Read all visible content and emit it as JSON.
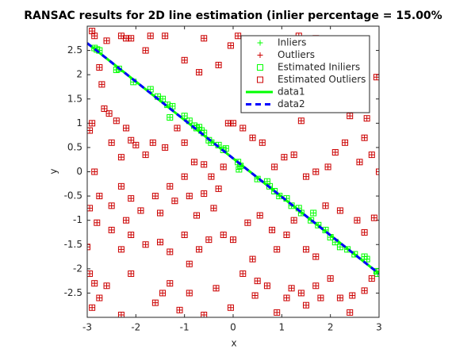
{
  "chart_data": {
    "type": "scatter",
    "title": "RANSAC results for 2D line estimation (inlier percentage = 15.00%",
    "xlabel": "x",
    "ylabel": "y",
    "xlim": [
      -3,
      3
    ],
    "ylim": [
      -3,
      3
    ],
    "xticks": [
      -3,
      -2,
      -1,
      0,
      1,
      2,
      3
    ],
    "yticks": [
      -2.5,
      -2,
      -1.5,
      -1,
      -0.5,
      0,
      0.5,
      1,
      1.5,
      2,
      2.5
    ],
    "grid": false,
    "legend": "upper right",
    "series": [
      {
        "name": "Inliers",
        "color": "#00ff00",
        "marker": "plus",
        "x": [
          -2.85,
          -2.8,
          -2.75,
          -2.4,
          -2.35,
          -2.05,
          -1.7,
          -1.55,
          -1.45,
          -1.35,
          -1.3,
          -1.25,
          -1.0,
          -0.9,
          -0.8,
          -0.75,
          -0.7,
          -0.65,
          -0.6,
          -0.5,
          -0.45,
          -0.3,
          -0.2,
          -0.15,
          0.1,
          0.12,
          0.15,
          0.5,
          0.7,
          0.75,
          0.85,
          0.95,
          1.1,
          1.2,
          1.35,
          1.4,
          1.6,
          1.65,
          1.75,
          1.9,
          2.0,
          2.1,
          2.2,
          2.35,
          2.5,
          2.7,
          2.75,
          2.95,
          2.97
        ],
        "y": [
          2.55,
          2.52,
          2.5,
          2.1,
          2.12,
          1.85,
          1.7,
          1.55,
          1.5,
          1.38,
          1.12,
          1.35,
          1.15,
          1.05,
          0.95,
          0.9,
          0.92,
          0.85,
          0.8,
          0.65,
          0.6,
          0.55,
          0.45,
          0.48,
          0.2,
          0.05,
          0.12,
          -0.15,
          -0.2,
          -0.3,
          -0.4,
          -0.5,
          -0.55,
          -0.7,
          -0.75,
          -0.85,
          -1.0,
          -0.85,
          -1.1,
          -1.2,
          -1.35,
          -1.45,
          -1.55,
          -1.6,
          -1.7,
          -1.75,
          -1.8,
          -2.05,
          -2.1
        ]
      },
      {
        "name": "Outliers",
        "color": "#cc0000",
        "marker": "plus",
        "x": [
          -2.9,
          -2.85,
          -2.6,
          -2.3,
          -2.2,
          -2.1,
          -1.8,
          -1.7,
          -1.4,
          -1.0,
          -0.7,
          -0.6,
          -0.3,
          -0.05,
          0.1,
          0.35,
          0.5,
          0.3,
          0.5,
          0.6,
          0.9,
          1.2,
          1.05,
          0.95,
          1.65,
          1.75,
          1.4,
          1.85,
          2.4,
          2.75,
          1.35,
          -2.75,
          -2.7,
          -2.65,
          -2.55,
          -2.4,
          -2.9,
          -2.95,
          -2.5,
          -2.2,
          -2.1,
          -2.0,
          -1.8,
          -1.65,
          -1.4,
          -1.15,
          -1.0,
          -0.8,
          -0.6,
          -0.45,
          -0.3,
          -0.2,
          -2.3,
          -2.85,
          -2.75,
          -2.5,
          -2.3,
          -2.1,
          -1.9,
          -2.2,
          -1.6,
          -1.5,
          -1.3,
          -1.2,
          -1.0,
          -0.9,
          -0.75,
          -0.6,
          -0.4,
          -2.95,
          -2.8,
          -2.5,
          -2.3,
          -2.1,
          -1.8,
          -1.5,
          -1.3,
          -1.0,
          -0.9,
          -0.7,
          -0.5,
          -0.2,
          -3.0,
          -2.95,
          -2.85,
          -2.75,
          -2.9,
          -2.6,
          -2.3,
          -2.1,
          -1.6,
          -1.45,
          -1.3,
          -1.1,
          -0.9,
          -0.6,
          -0.35,
          -0.05,
          0.2,
          0.4,
          0.5,
          0.45,
          0.7,
          0.9,
          1.1,
          1.2,
          1.4,
          1.5,
          1.7,
          1.8,
          2.0,
          2.2,
          2.45,
          2.7,
          2.85,
          2.4,
          0.0,
          0.3,
          0.55,
          0.8,
          0.9,
          1.1,
          1.25,
          1.5,
          1.7,
          1.9,
          2.2,
          2.55,
          2.7,
          2.9,
          3.0,
          2.85,
          2.6,
          2.3,
          2.1,
          1.95,
          1.7,
          1.5,
          1.25,
          1.05,
          0.85,
          0.6,
          0.4,
          0.2,
          0.0,
          -0.1,
          2.7,
          2.45,
          2.95,
          2.25,
          2.6,
          1.7
        ],
        "y": [
          2.9,
          2.8,
          2.7,
          2.8,
          2.75,
          2.75,
          2.5,
          2.8,
          2.8,
          2.3,
          2.05,
          2.75,
          2.2,
          2.6,
          2.8,
          2.5,
          2.65,
          2.2,
          1.8,
          1.5,
          1.75,
          1.75,
          2.3,
          2.6,
          2.1,
          1.5,
          1.05,
          1.3,
          1.15,
          1.1,
          2.8,
          2.15,
          1.8,
          1.3,
          1.2,
          1.05,
          1.0,
          0.85,
          0.6,
          0.9,
          0.65,
          0.55,
          0.35,
          0.6,
          0.5,
          0.9,
          0.6,
          0.2,
          0.15,
          -0.1,
          -0.35,
          0.1,
          0.3,
          0.0,
          -0.5,
          -0.7,
          -0.3,
          -0.55,
          -0.8,
          -1.0,
          -0.5,
          -0.85,
          -0.3,
          -0.6,
          -0.1,
          -0.5,
          -0.9,
          -0.45,
          -0.75,
          -0.75,
          -1.05,
          -1.2,
          -1.6,
          -1.3,
          -1.5,
          -1.45,
          -1.65,
          -1.3,
          -1.9,
          -1.6,
          -1.4,
          -1.3,
          -1.55,
          -2.1,
          -2.3,
          -2.6,
          -2.8,
          -2.35,
          -2.95,
          -2.1,
          -2.7,
          -2.5,
          -2.3,
          -2.85,
          -2.5,
          -2.95,
          -2.4,
          -2.8,
          -2.1,
          -1.8,
          -2.25,
          -2.55,
          -2.35,
          -2.9,
          -2.6,
          -2.4,
          -2.5,
          -2.75,
          -2.35,
          -2.6,
          -2.2,
          -2.6,
          -2.55,
          -2.45,
          -2.2,
          -2.9,
          -1.4,
          -1.05,
          -0.9,
          -1.2,
          -1.6,
          -1.3,
          -1.0,
          -1.6,
          -1.75,
          -0.7,
          -0.8,
          -1.0,
          -1.25,
          -0.95,
          0.0,
          0.35,
          0.2,
          0.6,
          0.4,
          0.1,
          0.0,
          -0.1,
          0.35,
          0.3,
          0.1,
          0.6,
          0.7,
          0.9,
          1.0,
          1.0,
          0.7,
          1.65,
          1.95,
          2.6,
          2.2,
          2.75
        ]
      },
      {
        "name": "Estimated Iniliers",
        "color": "#00ff00",
        "marker": "square",
        "x": [
          -2.85,
          -2.8,
          -2.75,
          -2.4,
          -2.35,
          -2.05,
          -1.7,
          -1.55,
          -1.45,
          -1.35,
          -1.3,
          -1.25,
          -1.0,
          -0.9,
          -0.8,
          -0.75,
          -0.7,
          -0.65,
          -0.6,
          -0.5,
          -0.45,
          -0.3,
          -0.2,
          -0.15,
          0.1,
          0.12,
          0.15,
          0.5,
          0.7,
          0.75,
          0.85,
          0.95,
          1.1,
          1.2,
          1.35,
          1.4,
          1.6,
          1.65,
          1.75,
          1.9,
          2.0,
          2.1,
          2.2,
          2.35,
          2.5,
          2.7,
          2.75,
          2.95,
          2.97
        ],
        "y": [
          2.55,
          2.52,
          2.5,
          2.1,
          2.12,
          1.85,
          1.7,
          1.55,
          1.5,
          1.38,
          1.12,
          1.35,
          1.15,
          1.05,
          0.95,
          0.9,
          0.92,
          0.85,
          0.8,
          0.65,
          0.6,
          0.55,
          0.45,
          0.48,
          0.2,
          0.05,
          0.12,
          -0.15,
          -0.2,
          -0.3,
          -0.4,
          -0.5,
          -0.55,
          -0.7,
          -0.75,
          -0.85,
          -1.0,
          -0.85,
          -1.1,
          -1.2,
          -1.35,
          -1.45,
          -1.55,
          -1.6,
          -1.7,
          -1.75,
          -1.8,
          -2.05,
          -2.1
        ]
      },
      {
        "name": "Estimated Outliers",
        "color": "#cc0000",
        "marker": "square",
        "x": [
          -2.9,
          -2.85,
          -2.6,
          -2.3,
          -2.2,
          -2.1,
          -1.8,
          -1.7,
          -1.4,
          -1.0,
          -0.7,
          -0.6,
          -0.3,
          -0.05,
          0.1,
          0.35,
          0.5,
          0.3,
          0.5,
          0.6,
          0.9,
          1.2,
          1.05,
          0.95,
          1.65,
          1.75,
          1.4,
          1.85,
          2.4,
          2.75,
          1.35,
          -2.75,
          -2.7,
          -2.65,
          -2.55,
          -2.4,
          -2.9,
          -2.95,
          -2.5,
          -2.2,
          -2.1,
          -2.0,
          -1.8,
          -1.65,
          -1.4,
          -1.15,
          -1.0,
          -0.8,
          -0.6,
          -0.45,
          -0.3,
          -0.2,
          -2.3,
          -2.85,
          -2.75,
          -2.5,
          -2.3,
          -2.1,
          -1.9,
          -2.2,
          -1.6,
          -1.5,
          -1.3,
          -1.2,
          -1.0,
          -0.9,
          -0.75,
          -0.6,
          -0.4,
          -2.95,
          -2.8,
          -2.5,
          -2.3,
          -2.1,
          -1.8,
          -1.5,
          -1.3,
          -1.0,
          -0.9,
          -0.7,
          -0.5,
          -0.2,
          -3.0,
          -2.95,
          -2.85,
          -2.75,
          -2.9,
          -2.6,
          -2.3,
          -2.1,
          -1.6,
          -1.45,
          -1.3,
          -1.1,
          -0.9,
          -0.6,
          -0.35,
          -0.05,
          0.2,
          0.4,
          0.5,
          0.45,
          0.7,
          0.9,
          1.1,
          1.2,
          1.4,
          1.5,
          1.7,
          1.8,
          2.0,
          2.2,
          2.45,
          2.7,
          2.85,
          2.4,
          0.0,
          0.3,
          0.55,
          0.8,
          0.9,
          1.1,
          1.25,
          1.5,
          1.7,
          1.9,
          2.2,
          2.55,
          2.7,
          2.9,
          3.0,
          2.85,
          2.6,
          2.3,
          2.1,
          1.95,
          1.7,
          1.5,
          1.25,
          1.05,
          0.85,
          0.6,
          0.4,
          0.2,
          0.0,
          -0.1,
          2.7,
          2.45,
          2.95,
          2.25,
          2.6,
          1.7
        ],
        "y": [
          2.9,
          2.8,
          2.7,
          2.8,
          2.75,
          2.75,
          2.5,
          2.8,
          2.8,
          2.3,
          2.05,
          2.75,
          2.2,
          2.6,
          2.8,
          2.5,
          2.65,
          2.2,
          1.8,
          1.5,
          1.75,
          1.75,
          2.3,
          2.6,
          2.1,
          1.5,
          1.05,
          1.3,
          1.15,
          1.1,
          2.8,
          2.15,
          1.8,
          1.3,
          1.2,
          1.05,
          1.0,
          0.85,
          0.6,
          0.9,
          0.65,
          0.55,
          0.35,
          0.6,
          0.5,
          0.9,
          0.6,
          0.2,
          0.15,
          -0.1,
          -0.35,
          0.1,
          0.3,
          0.0,
          -0.5,
          -0.7,
          -0.3,
          -0.55,
          -0.8,
          -1.0,
          -0.5,
          -0.85,
          -0.3,
          -0.6,
          -0.1,
          -0.5,
          -0.9,
          -0.45,
          -0.75,
          -0.75,
          -1.05,
          -1.2,
          -1.6,
          -1.3,
          -1.5,
          -1.45,
          -1.65,
          -1.3,
          -1.9,
          -1.6,
          -1.4,
          -1.3,
          -1.55,
          -2.1,
          -2.3,
          -2.6,
          -2.8,
          -2.35,
          -2.95,
          -2.1,
          -2.7,
          -2.5,
          -2.3,
          -2.85,
          -2.5,
          -2.95,
          -2.4,
          -2.8,
          -2.1,
          -1.8,
          -2.25,
          -2.55,
          -2.35,
          -2.9,
          -2.6,
          -2.4,
          -2.5,
          -2.75,
          -2.35,
          -2.6,
          -2.2,
          -2.6,
          -2.55,
          -2.45,
          -2.2,
          -2.9,
          -1.4,
          -1.05,
          -0.9,
          -1.2,
          -1.6,
          -1.3,
          -1.0,
          -1.6,
          -1.75,
          -0.7,
          -0.8,
          -1.0,
          -1.25,
          -0.95,
          0.0,
          0.35,
          0.2,
          0.6,
          0.4,
          0.1,
          0.0,
          -0.1,
          0.35,
          0.3,
          0.1,
          0.6,
          0.7,
          0.9,
          1.0,
          1.0,
          0.7,
          1.65,
          1.95,
          2.6,
          2.2,
          2.75
        ]
      },
      {
        "name": "data1",
        "color": "#00ff00",
        "line": "solid",
        "x": [
          -3,
          3
        ],
        "y": [
          2.65,
          -2.1
        ]
      },
      {
        "name": "data2",
        "color": "#0000ff",
        "line": "dashed",
        "x": [
          -3,
          3
        ],
        "y": [
          2.65,
          -2.1
        ]
      }
    ]
  }
}
